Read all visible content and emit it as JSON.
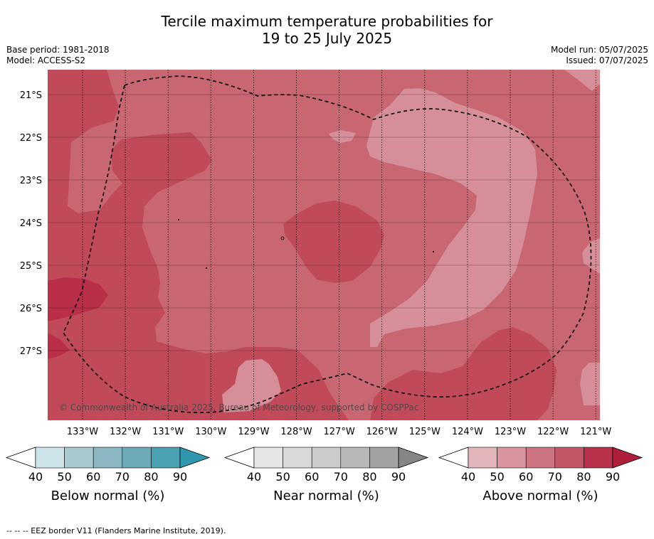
{
  "title": {
    "line1": "Tercile maximum temperature probabilities for",
    "line2": "19 to 25 July 2025"
  },
  "meta_left": {
    "base_period": "Base period: 1981-2018",
    "model": "Model: ACCESS-S2"
  },
  "meta_right": {
    "model_run": "Model run: 05/07/2025",
    "issued": "Issued: 07/07/2025"
  },
  "map": {
    "copyright": "© Commonwealth of Australia 2025, Bureau of Meteorology, supported by COSPPac",
    "lat_labels": [
      "21°S",
      "22°S",
      "23°S",
      "24°S",
      "25°S",
      "26°S",
      "27°S"
    ],
    "lon_labels": [
      "133°W",
      "132°W",
      "131°W",
      "130°W",
      "129°W",
      "128°W",
      "127°W",
      "126°W",
      "125°W",
      "124°W",
      "123°W",
      "122°W",
      "121°W"
    ],
    "colors": {
      "above_50": "#d68f99",
      "above_60": "#c86672",
      "above_70": "#c04a59",
      "above_80": "#b92e48"
    }
  },
  "legends": [
    {
      "label": "Below normal (%)",
      "ticks": [
        "40",
        "50",
        "60",
        "70",
        "80",
        "90"
      ],
      "colors": [
        "#ffffff",
        "#cde4ea",
        "#a9c9d0",
        "#8cb8c3",
        "#6caab8",
        "#4ba0b1",
        "#2f98ae"
      ]
    },
    {
      "label": "Near normal (%)",
      "ticks": [
        "40",
        "50",
        "60",
        "70",
        "80",
        "90"
      ],
      "colors": [
        "#ffffff",
        "#e6e6e6",
        "#d9d9d9",
        "#cbcbcb",
        "#b8b8b8",
        "#a2a2a2",
        "#868686"
      ]
    },
    {
      "label": "Above normal (%)",
      "ticks": [
        "40",
        "50",
        "60",
        "70",
        "80",
        "90"
      ],
      "colors": [
        "#ffffff",
        "#e3b6bc",
        "#d8959f",
        "#cc7580",
        "#c35766",
        "#b8324b",
        "#ad1f3a"
      ]
    }
  ],
  "footer": "--  --  -- EEZ border V11 (Flanders Marine Institute, 2019)."
}
